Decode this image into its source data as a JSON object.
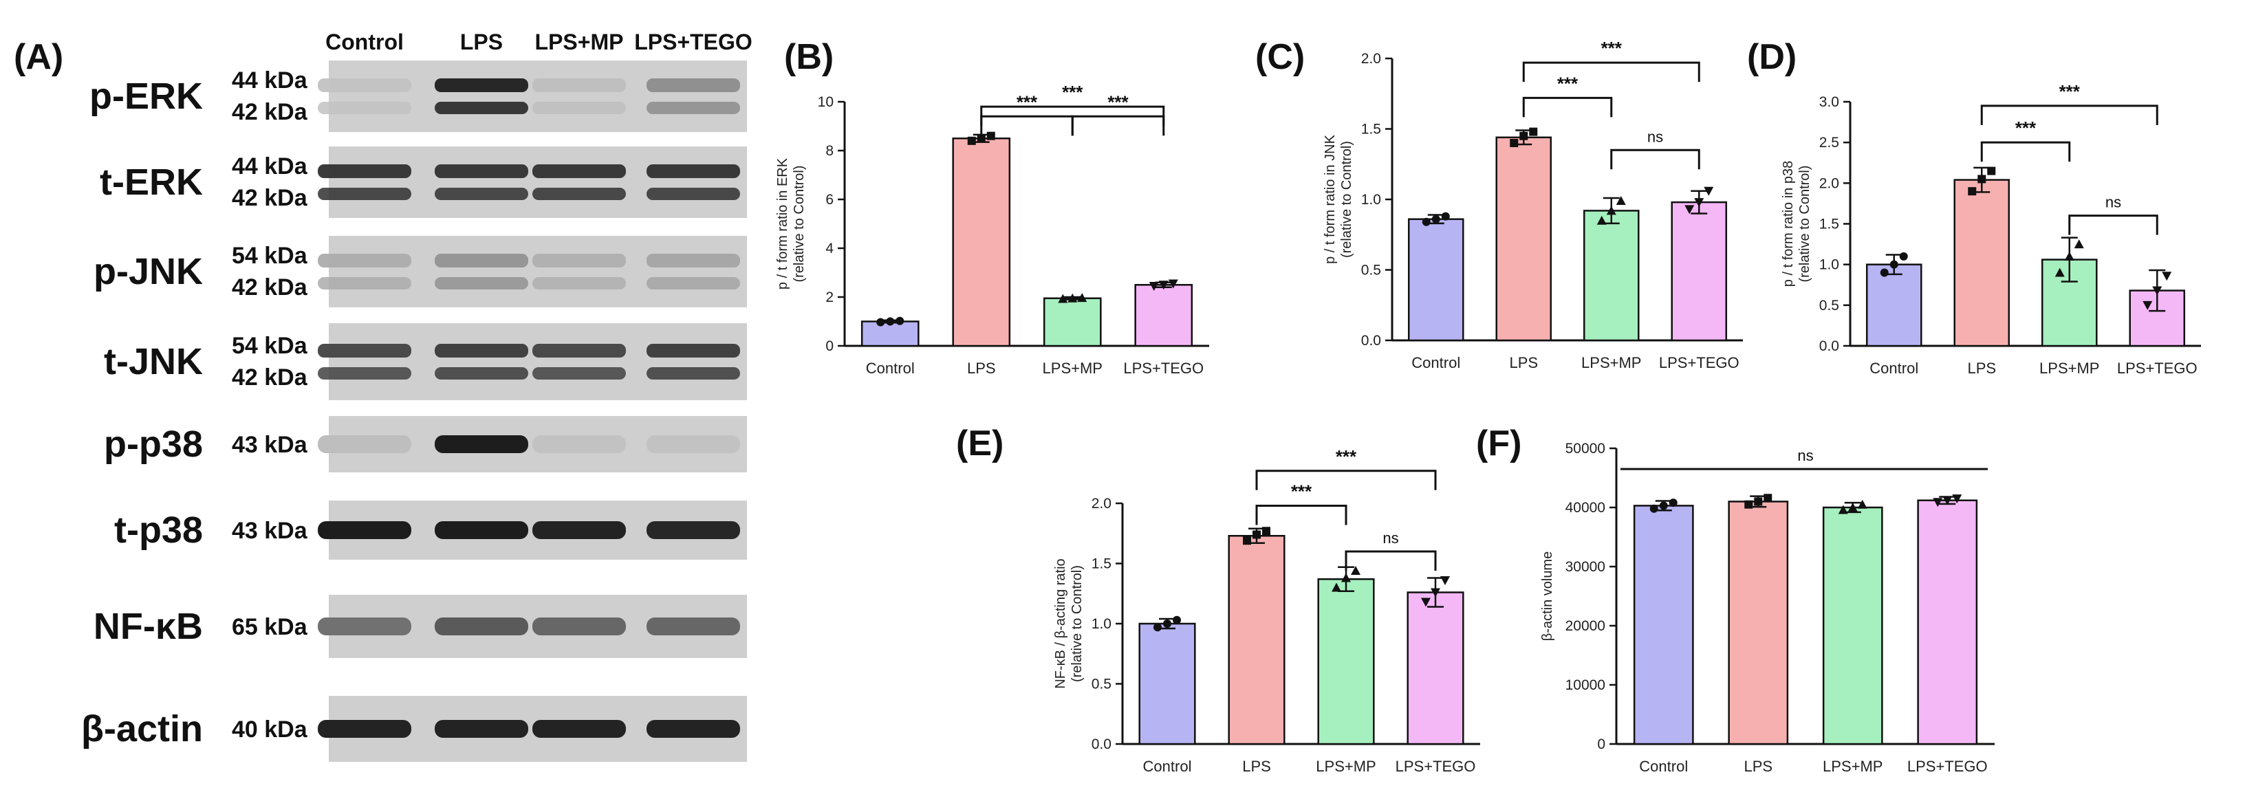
{
  "blot": {
    "letter": "(A)",
    "lanes": [
      "Control",
      "LPS",
      "LPS+MP",
      "LPS+TEGO"
    ],
    "rows": [
      {
        "protein": "p-ERK",
        "kda": [
          "44 kDa",
          "42 kDa"
        ],
        "intensity": [
          0.06,
          0.95,
          0.08,
          0.35
        ]
      },
      {
        "protein": "t-ERK",
        "kda": [
          "44 kDa",
          "42 kDa"
        ],
        "intensity": [
          0.85,
          0.85,
          0.85,
          0.85
        ]
      },
      {
        "protein": "p-JNK",
        "kda": [
          "54 kDa",
          "42 kDa"
        ],
        "intensity": [
          0.18,
          0.32,
          0.16,
          0.22
        ]
      },
      {
        "protein": "t-JNK",
        "kda": [
          "54 kDa",
          "42 kDa"
        ],
        "intensity": [
          0.75,
          0.8,
          0.75,
          0.8
        ]
      },
      {
        "protein": "p-p38",
        "kda": [
          "43 kDa"
        ],
        "intensity": [
          0.08,
          0.95,
          0.06,
          0.06
        ]
      },
      {
        "protein": "t-p38",
        "kda": [
          "43 kDa"
        ],
        "intensity": [
          0.95,
          0.95,
          0.92,
          0.9
        ]
      },
      {
        "protein": "NF-κB",
        "kda": [
          "65 kDa"
        ],
        "intensity": [
          0.5,
          0.62,
          0.55,
          0.55
        ]
      },
      {
        "protein": "β-actin",
        "kda": [
          "40 kDa"
        ],
        "intensity": [
          0.92,
          0.92,
          0.92,
          0.92
        ]
      }
    ]
  },
  "chart_data": [
    {
      "letter": "(B)",
      "type": "bar",
      "categories": [
        "Control",
        "LPS",
        "LPS+MP",
        "LPS+TEGO"
      ],
      "values": [
        1.0,
        8.5,
        1.95,
        2.5
      ],
      "errors": [
        0.05,
        0.15,
        0.05,
        0.1
      ],
      "points": [
        [
          0.97,
          1.0,
          1.02
        ],
        [
          8.4,
          8.5,
          8.6
        ],
        [
          1.93,
          1.95,
          1.97
        ],
        [
          2.45,
          2.5,
          2.55
        ]
      ],
      "ylabel": [
        "p / t form ratio in ERK",
        "(relative to Control)"
      ],
      "ylim": [
        0,
        10
      ],
      "yticks": [
        0,
        2,
        4,
        6,
        8,
        10
      ],
      "comparisons": [
        {
          "from": 1,
          "to": 3,
          "label": "***",
          "y": 9.8
        },
        {
          "from": 1,
          "to": 2,
          "label": "***",
          "y": 9.4
        },
        {
          "from": 2,
          "to": 3,
          "label": "***",
          "y": 9.4
        }
      ]
    },
    {
      "letter": "(C)",
      "type": "bar",
      "categories": [
        "Control",
        "LPS",
        "LPS+MP",
        "LPS+TEGO"
      ],
      "values": [
        0.86,
        1.44,
        0.92,
        0.98
      ],
      "errors": [
        0.03,
        0.05,
        0.09,
        0.08
      ],
      "points": [
        [
          0.84,
          0.86,
          0.88
        ],
        [
          1.4,
          1.45,
          1.48
        ],
        [
          0.85,
          0.92,
          0.99
        ],
        [
          0.93,
          0.98,
          1.06
        ]
      ],
      "ylabel": [
        "p / t form ratio in JNK",
        "(relative to Control)"
      ],
      "ylim": [
        0,
        2.0
      ],
      "yticks": [
        "0.0",
        "0.5",
        "1.0",
        "1.5",
        "2.0"
      ],
      "comparisons": [
        {
          "from": 1,
          "to": 3,
          "label": "***",
          "y": 1.97
        },
        {
          "from": 1,
          "to": 2,
          "label": "***",
          "y": 1.72
        },
        {
          "from": 2,
          "to": 3,
          "label": "ns",
          "y": 1.35
        }
      ]
    },
    {
      "letter": "(D)",
      "type": "bar",
      "categories": [
        "Control",
        "LPS",
        "LPS+MP",
        "LPS+TEGO"
      ],
      "values": [
        1.0,
        2.04,
        1.06,
        0.68
      ],
      "errors": [
        0.12,
        0.15,
        0.27,
        0.25
      ],
      "points": [
        [
          0.9,
          1.0,
          1.1
        ],
        [
          1.9,
          2.05,
          2.15
        ],
        [
          0.9,
          1.1,
          1.25
        ],
        [
          0.5,
          0.68,
          0.86
        ]
      ],
      "ylabel": [
        "p / t form ratio in p38",
        "(relative to Control)"
      ],
      "ylim": [
        0,
        3.0
      ],
      "yticks": [
        "0.0",
        "0.5",
        "1.0",
        "1.5",
        "2.0",
        "2.5",
        "3.0"
      ],
      "comparisons": [
        {
          "from": 1,
          "to": 3,
          "label": "***",
          "y": 2.95
        },
        {
          "from": 1,
          "to": 2,
          "label": "***",
          "y": 2.5
        },
        {
          "from": 2,
          "to": 3,
          "label": "ns",
          "y": 1.6
        }
      ]
    },
    {
      "letter": "(E)",
      "type": "bar",
      "categories": [
        "Control",
        "LPS",
        "LPS+MP",
        "LPS+TEGO"
      ],
      "values": [
        1.0,
        1.73,
        1.37,
        1.26
      ],
      "errors": [
        0.04,
        0.06,
        0.1,
        0.12
      ],
      "points": [
        [
          0.97,
          1.0,
          1.03
        ],
        [
          1.69,
          1.74,
          1.77
        ],
        [
          1.3,
          1.38,
          1.44
        ],
        [
          1.18,
          1.26,
          1.36
        ]
      ],
      "ylabel": [
        "NF-κB / β-acting ratio",
        "(relative to Control)"
      ],
      "ylim": [
        0,
        2.0
      ],
      "yticks": [
        "0.0",
        "0.5",
        "1.0",
        "1.5",
        "2.0"
      ],
      "comparisons": [
        {
          "from": 1,
          "to": 3,
          "label": "***",
          "y": 2.27
        },
        {
          "from": 1,
          "to": 2,
          "label": "***",
          "y": 1.98
        },
        {
          "from": 2,
          "to": 3,
          "label": "ns",
          "y": 1.6
        }
      ]
    },
    {
      "letter": "(F)",
      "type": "bar",
      "categories": [
        "Control",
        "LPS",
        "LPS+MP",
        "LPS+TEGO"
      ],
      "values": [
        40300,
        41000,
        40000,
        41200
      ],
      "errors": [
        800,
        900,
        800,
        600
      ],
      "points": [
        [
          39800,
          40300,
          40800
        ],
        [
          40500,
          41000,
          41600
        ],
        [
          39600,
          40000,
          40500
        ],
        [
          40900,
          41200,
          41500
        ]
      ],
      "ylabel": [
        "β-actin volume"
      ],
      "ylim": [
        0,
        50000
      ],
      "yticks": [
        "0",
        "10000",
        "20000",
        "30000",
        "40000",
        "50000"
      ],
      "comparisons": [
        {
          "from": 0,
          "to": 3,
          "label": "ns",
          "y": 46500,
          "flat": true
        }
      ]
    }
  ],
  "colors": {
    "bars": [
      "#b7b4f4",
      "#f7b0b0",
      "#a6efbf",
      "#f5b8f7"
    ],
    "ink": "#111111"
  }
}
